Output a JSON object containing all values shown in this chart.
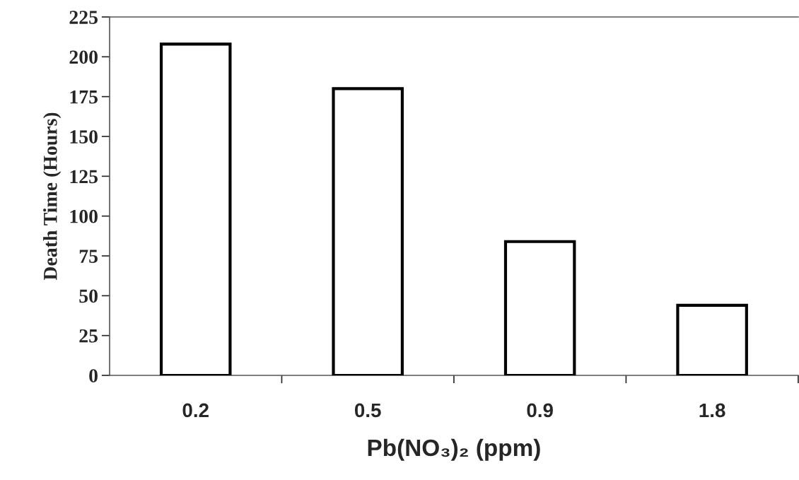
{
  "chart_data": {
    "type": "bar",
    "xlabel": "Pb(NO₃)₂ (ppm)",
    "ylabel": "Death Time (Hours)",
    "categories": [
      "0.2",
      "0.5",
      "0.9",
      "1.8"
    ],
    "values": [
      208,
      180,
      84,
      44
    ],
    "color": "#ffffff",
    "ylim": [
      0,
      225
    ],
    "yticks": [
      0,
      25,
      50,
      75,
      100,
      125,
      150,
      175,
      200,
      225
    ],
    "grid": false,
    "legend": false
  }
}
